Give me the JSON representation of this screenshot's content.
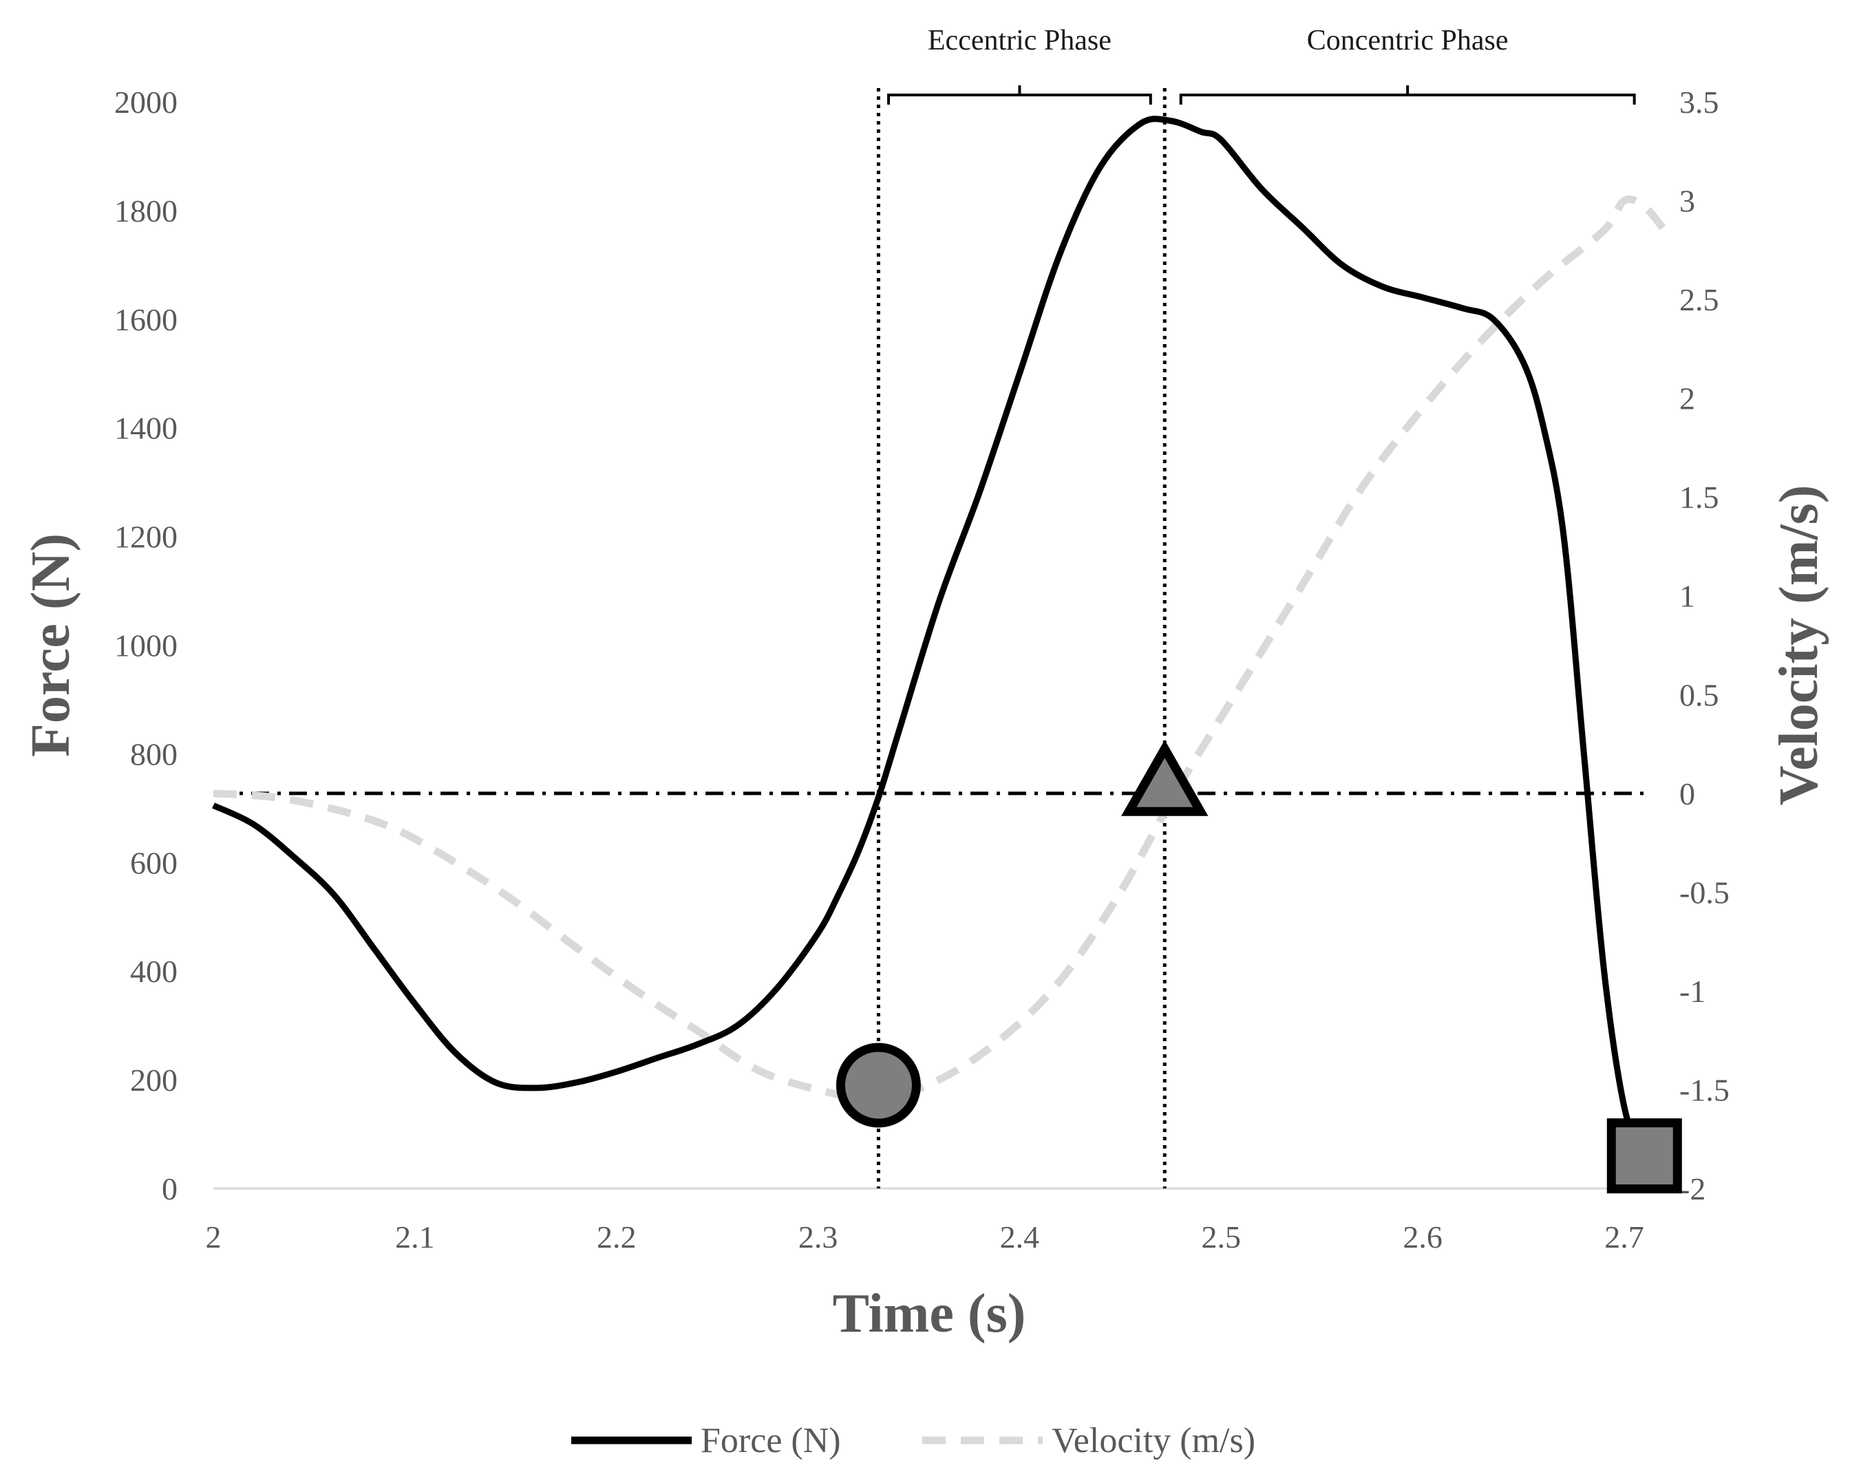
{
  "chart_data": {
    "type": "line",
    "xlabel": "Time (s)",
    "ylabel": "Force (N)",
    "y2label": "Velocity (m/s)",
    "xlim": [
      2,
      2.7
    ],
    "ylim": [
      0,
      2000
    ],
    "y2lim": [
      -2,
      3.5
    ],
    "xticks": [
      "2",
      "2.1",
      "2.2",
      "2.3",
      "2.4",
      "2.5",
      "2.6",
      "2.7"
    ],
    "yticks": [
      "0",
      "200",
      "400",
      "600",
      "800",
      "1000",
      "1200",
      "1400",
      "1600",
      "1800",
      "2000"
    ],
    "y2ticks": [
      "-2",
      "-1.5",
      "-1",
      "-0.5",
      "0",
      "0.5",
      "1",
      "1.5",
      "2",
      "2.5",
      "3",
      "3.5"
    ],
    "grid": false,
    "legend_position": "bottom",
    "series": [
      {
        "name": "Force (N)",
        "axis": "left",
        "style": "solid",
        "color": "#000000",
        "x": [
          2.0,
          2.02,
          2.04,
          2.06,
          2.08,
          2.1,
          2.12,
          2.14,
          2.16,
          2.18,
          2.2,
          2.22,
          2.24,
          2.26,
          2.28,
          2.3,
          2.31,
          2.32,
          2.33,
          2.34,
          2.36,
          2.38,
          2.4,
          2.42,
          2.44,
          2.46,
          2.475,
          2.49,
          2.5,
          2.52,
          2.54,
          2.56,
          2.58,
          2.6,
          2.62,
          2.635,
          2.65,
          2.66,
          2.67,
          2.68,
          2.69,
          2.7,
          2.71
        ],
        "values": [
          705,
          670,
          610,
          540,
          440,
          340,
          250,
          195,
          185,
          195,
          215,
          240,
          265,
          300,
          370,
          470,
          540,
          620,
          720,
          840,
          1080,
          1280,
          1500,
          1720,
          1880,
          1960,
          1965,
          1945,
          1930,
          1840,
          1770,
          1700,
          1660,
          1640,
          1620,
          1600,
          1520,
          1400,
          1200,
          800,
          400,
          150,
          50
        ]
      },
      {
        "name": "Velocity (m/s)",
        "axis": "right",
        "style": "dashed",
        "color": "#d9d9d9",
        "x": [
          2.0,
          2.03,
          2.06,
          2.09,
          2.12,
          2.15,
          2.18,
          2.21,
          2.24,
          2.27,
          2.3,
          2.33,
          2.36,
          2.39,
          2.42,
          2.45,
          2.48,
          2.51,
          2.54,
          2.57,
          2.6,
          2.63,
          2.66,
          2.69,
          2.7,
          2.71,
          2.72
        ],
        "values": [
          0.0,
          -0.02,
          -0.08,
          -0.18,
          -0.35,
          -0.55,
          -0.78,
          -1.0,
          -1.2,
          -1.4,
          -1.5,
          -1.55,
          -1.45,
          -1.25,
          -0.95,
          -0.5,
          0.05,
          0.55,
          1.05,
          1.55,
          1.95,
          2.3,
          2.6,
          2.85,
          3.0,
          2.97,
          2.85
        ]
      }
    ],
    "reference_lines": {
      "horizontal_velocity": 0,
      "vertical_times": [
        2.33,
        2.472
      ]
    },
    "markers": [
      {
        "name": "circle",
        "x": 2.33,
        "y_force": 190,
        "fill": "#7f7f7f"
      },
      {
        "name": "triangle",
        "x": 2.472,
        "y_force": 730,
        "fill": "#7f7f7f"
      },
      {
        "name": "square",
        "x": 2.71,
        "y_force": 60,
        "fill": "#7f7f7f"
      }
    ],
    "phases": [
      {
        "label": "Eccentric Phase",
        "x_start": 2.335,
        "x_end": 2.465
      },
      {
        "label": "Concentric Phase",
        "x_start": 2.48,
        "x_end": 2.705
      }
    ]
  }
}
